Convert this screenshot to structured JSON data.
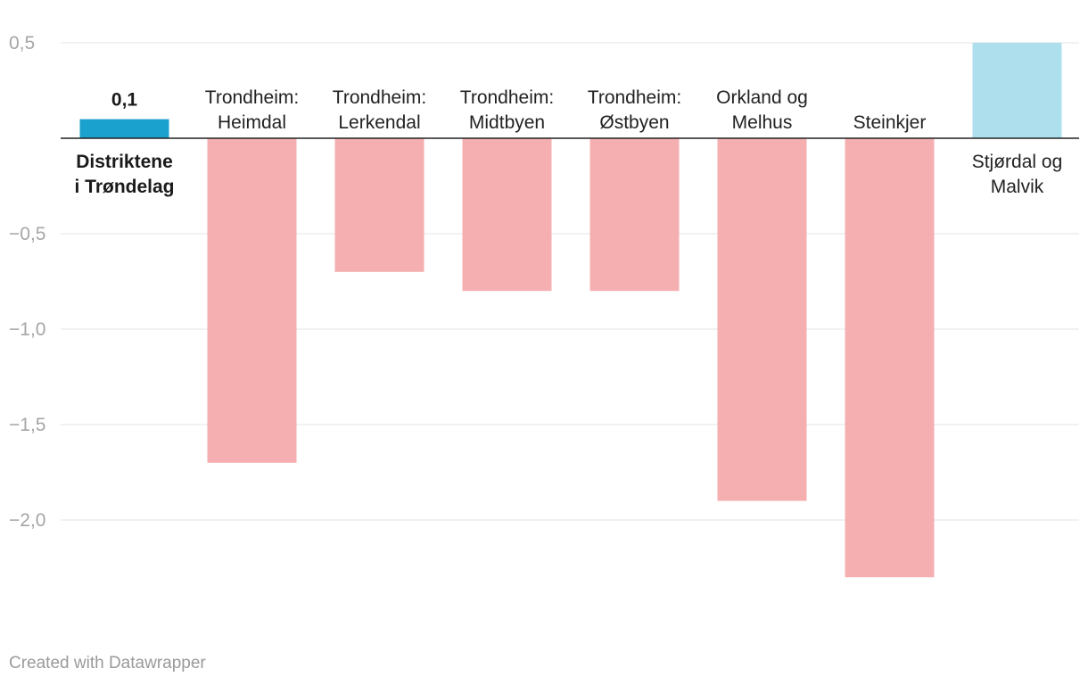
{
  "chart_data": {
    "type": "bar",
    "categories": [
      [
        "Distriktene",
        "i Trøndelag"
      ],
      [
        "Trondheim:",
        "Heimdal"
      ],
      [
        "Trondheim:",
        "Lerkendal"
      ],
      [
        "Trondheim:",
        "Midtbyen"
      ],
      [
        "Trondheim:",
        "Østbyen"
      ],
      [
        "Orkland og",
        "Melhus"
      ],
      [
        "Steinkjer"
      ],
      [
        "Stjørdal og",
        "Malvik"
      ]
    ],
    "values": [
      0.1,
      -1.7,
      -0.7,
      -0.8,
      -0.8,
      -1.9,
      -2.3,
      0.5
    ],
    "colors": [
      "#1ba1cd",
      "#f5afb1",
      "#f5afb1",
      "#f5afb1",
      "#f5afb1",
      "#f5afb1",
      "#f5afb1",
      "#aedfed"
    ],
    "highlight_index": 0,
    "highlight_value_label": "0,1",
    "yticks": [
      0.5,
      -0.5,
      -1.0,
      -1.5,
      -2.0
    ],
    "ytick_labels": [
      "0,5",
      "−0,5",
      "−1,0",
      "−1,5",
      "−2,0"
    ],
    "ylim": [
      -2.6,
      0.55
    ],
    "title": "",
    "xlabel": "",
    "ylabel": "",
    "grid": true
  },
  "footer": {
    "credit": "Created with Datawrapper"
  }
}
